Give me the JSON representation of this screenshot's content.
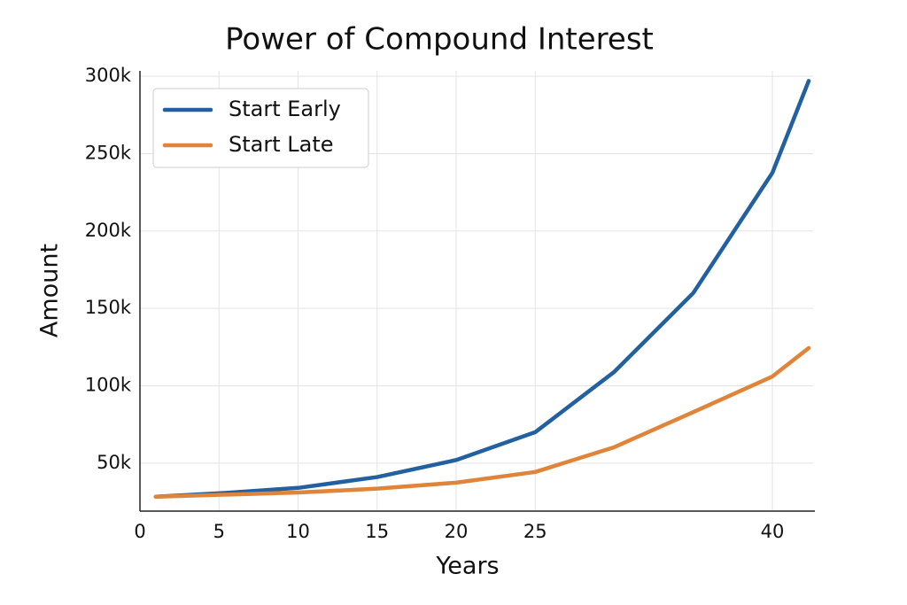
{
  "chart_data": {
    "type": "line",
    "title": "Power of Compound Interest",
    "x_label": "Years",
    "y_label": "Amount",
    "x": [
      1,
      5,
      10,
      15,
      20,
      25,
      30,
      35,
      40,
      42.3
    ],
    "series": [
      {
        "name": "Start Early",
        "color": "#22609f",
        "values": [
          28300,
          30500,
          34000,
          41000,
          52000,
          70000,
          109000,
          160000,
          237600,
          297000
        ]
      },
      {
        "name": "Start Late",
        "color": "#e0843a",
        "values": [
          28300,
          29500,
          31000,
          33500,
          37400,
          44300,
          60300,
          83000,
          106000,
          124400
        ]
      }
    ],
    "xlim": [
      0,
      42.5
    ],
    "xticks": [
      0,
      5,
      10,
      15,
      20,
      25,
      40
    ],
    "ylim": [
      19000,
      303500
    ],
    "yticks": [
      {
        "value": 50000,
        "label": "50k"
      },
      {
        "value": 100000,
        "label": "100k"
      },
      {
        "value": 150000,
        "label": "150k"
      },
      {
        "value": 200000,
        "label": "200k"
      },
      {
        "value": 250000,
        "label": "250k"
      },
      {
        "value": 300000,
        "label": "300k"
      }
    ],
    "grid": true,
    "legend": "upper left"
  }
}
